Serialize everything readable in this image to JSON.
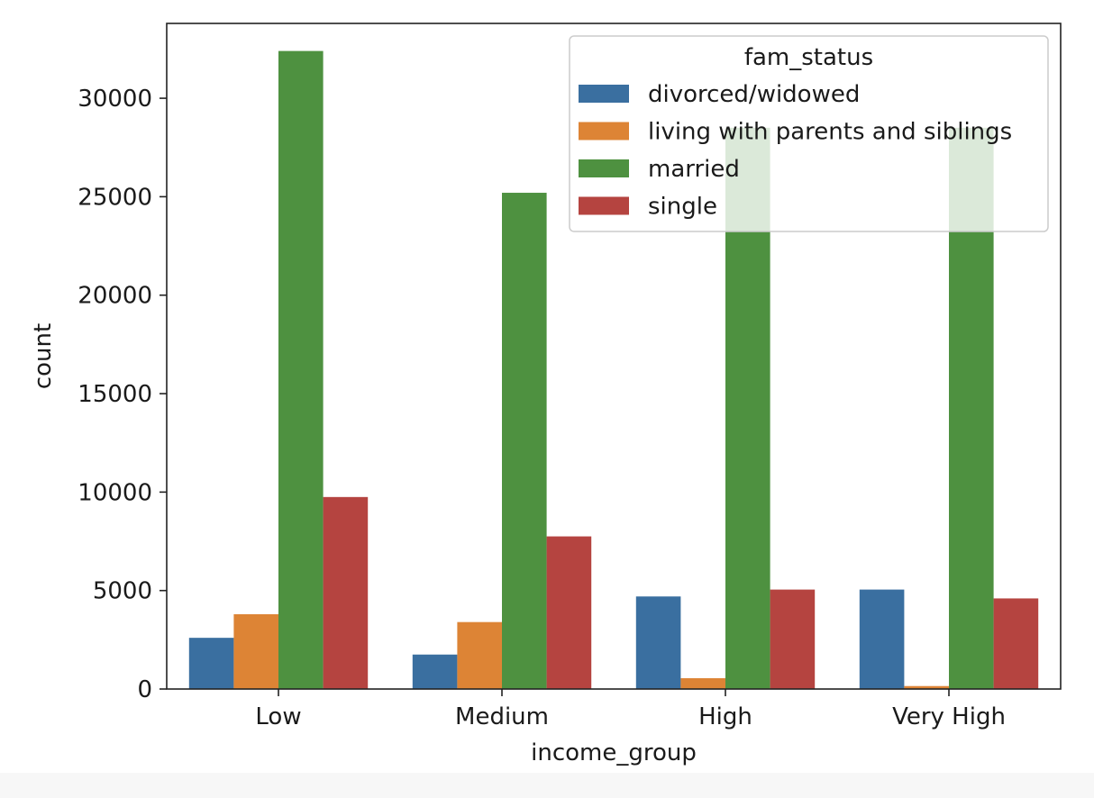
{
  "chart_data": {
    "type": "bar",
    "xlabel": "income_group",
    "ylabel": "count",
    "categories": [
      "Low",
      "Medium",
      "High",
      "Very High"
    ],
    "ylim": [
      0,
      33800
    ],
    "yticks": [
      0,
      5000,
      10000,
      15000,
      20000,
      25000,
      30000
    ],
    "grid": false,
    "legend": {
      "title": "fam_status",
      "placement": "top-right"
    },
    "series": [
      {
        "name": "divorced/widowed",
        "color": "#3a6fa0",
        "values": [
          2600,
          1750,
          4700,
          5050
        ]
      },
      {
        "name": "living with parents and siblings",
        "color": "#dd8435",
        "values": [
          3800,
          3400,
          550,
          150
        ]
      },
      {
        "name": "married",
        "color": "#4e9140",
        "values": [
          32400,
          25200,
          28500,
          28500
        ]
      },
      {
        "name": "single",
        "color": "#b54440",
        "values": [
          9750,
          7750,
          5050,
          4600
        ]
      }
    ]
  }
}
